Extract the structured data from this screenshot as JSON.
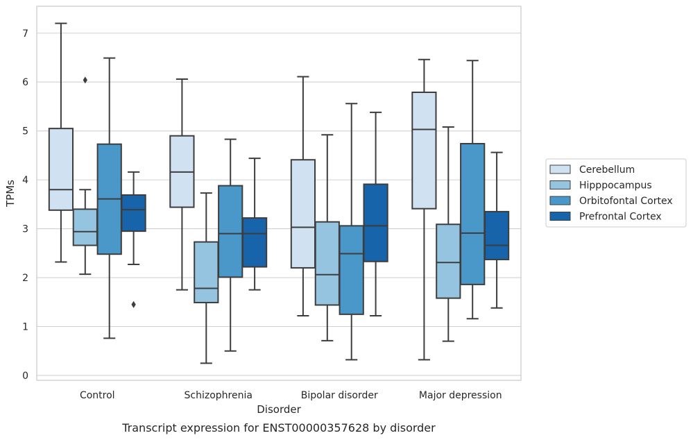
{
  "chart_data": {
    "type": "boxplot",
    "caption": "Transcript expression for ENST00000357628 by disorder",
    "xlabel": "Disorder",
    "ylabel": "TPMs",
    "ylim": [
      -0.1,
      7.55
    ],
    "yticks": [
      0,
      1,
      2,
      3,
      4,
      5,
      6,
      7
    ],
    "grid": true,
    "legend_position": "right",
    "categories": [
      "Control",
      "Schizophrenia",
      "Bipolar disorder",
      "Major depression"
    ],
    "series": [
      {
        "name": "Cerebellum",
        "color": "#d0e1f2",
        "boxes": [
          {
            "whislo": 2.32,
            "q1": 3.38,
            "med": 3.8,
            "q3": 5.05,
            "whishi": 7.2,
            "fliers": []
          },
          {
            "whislo": 1.75,
            "q1": 3.44,
            "med": 4.16,
            "q3": 4.9,
            "whishi": 6.06,
            "fliers": []
          },
          {
            "whislo": 1.22,
            "q1": 2.2,
            "med": 3.03,
            "q3": 4.41,
            "whishi": 6.11,
            "fliers": []
          },
          {
            "whislo": 0.32,
            "q1": 3.41,
            "med": 5.03,
            "q3": 5.79,
            "whishi": 6.46,
            "fliers": []
          }
        ]
      },
      {
        "name": "Hipppocampus",
        "color": "#94c4df",
        "boxes": [
          {
            "whislo": 2.07,
            "q1": 2.66,
            "med": 2.94,
            "q3": 3.4,
            "whishi": 3.8,
            "fliers": [
              6.04
            ]
          },
          {
            "whislo": 0.25,
            "q1": 1.49,
            "med": 1.78,
            "q3": 2.73,
            "whishi": 3.73,
            "fliers": []
          },
          {
            "whislo": 0.71,
            "q1": 1.44,
            "med": 2.06,
            "q3": 3.14,
            "whishi": 4.92,
            "fliers": []
          },
          {
            "whislo": 0.7,
            "q1": 1.58,
            "med": 2.31,
            "q3": 3.09,
            "whishi": 5.08,
            "fliers": []
          }
        ]
      },
      {
        "name": "Orbitofontal Cortex",
        "color": "#4a98c9",
        "boxes": [
          {
            "whislo": 0.76,
            "q1": 2.48,
            "med": 3.61,
            "q3": 4.73,
            "whishi": 6.49,
            "fliers": []
          },
          {
            "whislo": 0.5,
            "q1": 2.01,
            "med": 2.9,
            "q3": 3.88,
            "whishi": 4.83,
            "fliers": []
          },
          {
            "whislo": 0.32,
            "q1": 1.25,
            "med": 2.49,
            "q3": 3.06,
            "whishi": 5.56,
            "fliers": []
          },
          {
            "whislo": 1.16,
            "q1": 1.86,
            "med": 2.91,
            "q3": 4.74,
            "whishi": 6.44,
            "fliers": []
          }
        ]
      },
      {
        "name": "Prefrontal Cortex",
        "color": "#1764ab",
        "boxes": [
          {
            "whislo": 2.27,
            "q1": 2.95,
            "med": 3.39,
            "q3": 3.69,
            "whishi": 4.16,
            "fliers": [
              1.45
            ]
          },
          {
            "whislo": 1.75,
            "q1": 2.22,
            "med": 2.9,
            "q3": 3.22,
            "whishi": 4.44,
            "fliers": []
          },
          {
            "whislo": 1.22,
            "q1": 2.33,
            "med": 3.06,
            "q3": 3.91,
            "whishi": 5.38,
            "fliers": []
          },
          {
            "whislo": 1.38,
            "q1": 2.37,
            "med": 2.66,
            "q3": 3.35,
            "whishi": 4.56,
            "fliers": []
          }
        ]
      }
    ]
  }
}
